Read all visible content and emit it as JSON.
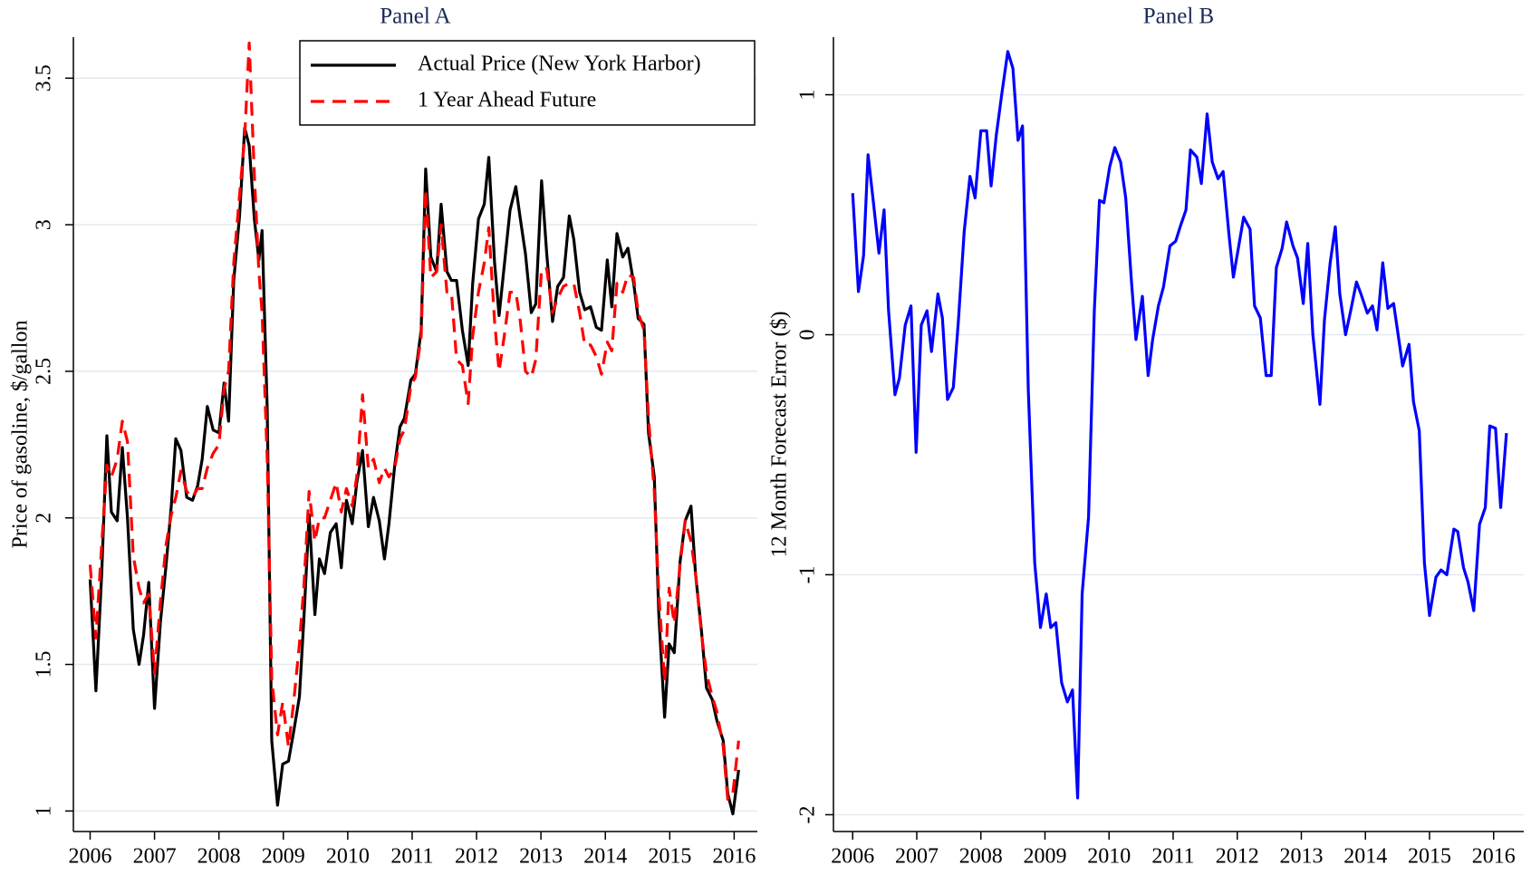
{
  "chart_data": [
    {
      "type": "line",
      "title": "Panel A",
      "ylabel": "Price of gasoline, $/gallon",
      "x": [
        2006.0,
        2006.09,
        2006.18,
        2006.26,
        2006.33,
        2006.42,
        2006.5,
        2006.58,
        2006.67,
        2006.76,
        2006.83,
        2006.91,
        2007.0,
        2007.09,
        2007.18,
        2007.26,
        2007.33,
        2007.41,
        2007.5,
        2007.59,
        2007.67,
        2007.74,
        2007.82,
        2007.91,
        2008.0,
        2008.08,
        2008.15,
        2008.23,
        2008.32,
        2008.4,
        2008.47,
        2008.55,
        2008.62,
        2008.67,
        2008.75,
        2008.82,
        2008.91,
        2008.99,
        2009.08,
        2009.16,
        2009.25,
        2009.32,
        2009.4,
        2009.49,
        2009.56,
        2009.64,
        2009.73,
        2009.82,
        2009.9,
        2009.98,
        2010.07,
        2010.14,
        2010.23,
        2010.32,
        2010.4,
        2010.49,
        2010.57,
        2010.64,
        2010.73,
        2010.81,
        2010.88,
        2010.98,
        2011.05,
        2011.14,
        2011.21,
        2011.29,
        2011.38,
        2011.45,
        2011.54,
        2011.61,
        2011.69,
        2011.78,
        2011.87,
        2011.94,
        2012.03,
        2012.12,
        2012.19,
        2012.28,
        2012.35,
        2012.43,
        2012.52,
        2012.61,
        2012.68,
        2012.76,
        2012.85,
        2012.92,
        2013.01,
        2013.09,
        2013.18,
        2013.26,
        2013.35,
        2013.44,
        2013.51,
        2013.6,
        2013.68,
        2013.77,
        2013.86,
        2013.94,
        2014.03,
        2014.1,
        2014.18,
        2014.27,
        2014.35,
        2014.44,
        2014.51,
        2014.6,
        2014.67,
        2014.76,
        2014.83,
        2014.92,
        2014.99,
        2015.07,
        2015.16,
        2015.24,
        2015.33,
        2015.4,
        2015.49,
        2015.57,
        2015.66,
        2015.73,
        2015.83,
        2015.9,
        2015.98,
        2016.07
      ],
      "series": [
        {
          "name": "Actual Price (New York Harbor)",
          "color": "#000000",
          "line_style": "solid",
          "values": [
            1.79,
            1.41,
            1.81,
            2.28,
            2.02,
            1.99,
            2.24,
            2.0,
            1.62,
            1.5,
            1.6,
            1.78,
            1.35,
            1.64,
            1.84,
            2.04,
            2.27,
            2.23,
            2.07,
            2.06,
            2.11,
            2.2,
            2.38,
            2.3,
            2.29,
            2.46,
            2.33,
            2.81,
            3.03,
            3.33,
            3.27,
            3.02,
            2.88,
            2.98,
            2.37,
            1.24,
            1.02,
            1.16,
            1.17,
            1.27,
            1.39,
            1.66,
            2.01,
            1.67,
            1.86,
            1.81,
            1.95,
            1.98,
            1.83,
            2.06,
            1.98,
            2.12,
            2.23,
            1.97,
            2.07,
            1.99,
            1.86,
            1.98,
            2.18,
            2.31,
            2.34,
            2.47,
            2.49,
            2.64,
            3.19,
            2.89,
            2.84,
            3.07,
            2.84,
            2.81,
            2.81,
            2.64,
            2.52,
            2.8,
            3.02,
            3.07,
            3.23,
            2.87,
            2.69,
            2.86,
            3.05,
            3.13,
            3.02,
            2.9,
            2.7,
            2.73,
            3.15,
            2.9,
            2.67,
            2.79,
            2.82,
            3.03,
            2.95,
            2.77,
            2.71,
            2.72,
            2.65,
            2.64,
            2.88,
            2.72,
            2.97,
            2.89,
            2.92,
            2.8,
            2.68,
            2.66,
            2.29,
            2.14,
            1.67,
            1.32,
            1.57,
            1.54,
            1.85,
            1.99,
            2.04,
            1.81,
            1.62,
            1.42,
            1.38,
            1.31,
            1.24,
            1.06,
            0.99,
            1.14
          ]
        },
        {
          "name": "1 Year Ahead Future",
          "color": "#ff0000",
          "line_style": "dashed",
          "values": [
            1.84,
            1.59,
            1.91,
            2.18,
            2.14,
            2.2,
            2.33,
            2.26,
            1.87,
            1.76,
            1.71,
            1.74,
            1.47,
            1.71,
            1.91,
            2.01,
            2.07,
            2.16,
            2.09,
            2.07,
            2.1,
            2.1,
            2.17,
            2.22,
            2.25,
            2.44,
            2.5,
            2.87,
            3.1,
            3.3,
            3.62,
            3.17,
            2.84,
            2.7,
            2.2,
            1.45,
            1.26,
            1.37,
            1.22,
            1.37,
            1.57,
            1.77,
            2.09,
            1.92,
            2.0,
            2.0,
            2.06,
            2.12,
            2.02,
            2.1,
            2.04,
            2.14,
            2.42,
            2.17,
            2.2,
            2.12,
            2.17,
            2.14,
            2.17,
            2.27,
            2.3,
            2.45,
            2.48,
            2.62,
            3.12,
            2.82,
            2.84,
            3.0,
            2.77,
            2.77,
            2.54,
            2.52,
            2.39,
            2.62,
            2.77,
            2.87,
            2.99,
            2.67,
            2.5,
            2.62,
            2.77,
            2.77,
            2.67,
            2.5,
            2.48,
            2.54,
            2.85,
            2.85,
            2.7,
            2.75,
            2.79,
            2.8,
            2.8,
            2.7,
            2.59,
            2.59,
            2.55,
            2.49,
            2.6,
            2.57,
            2.8,
            2.77,
            2.83,
            2.82,
            2.7,
            2.64,
            2.34,
            2.09,
            1.74,
            1.44,
            1.76,
            1.64,
            1.84,
            1.99,
            1.92,
            1.81,
            1.61,
            1.47,
            1.39,
            1.34,
            1.22,
            1.04,
            1.06,
            1.24
          ]
        }
      ],
      "xlim": [
        2005.74,
        2016.36
      ],
      "xticks": [
        2006,
        2007,
        2008,
        2009,
        2010,
        2011,
        2012,
        2013,
        2014,
        2015,
        2016
      ],
      "ylim": [
        0.93,
        3.64
      ],
      "yticks": [
        1,
        1.5,
        2,
        2.5,
        3,
        3.5
      ],
      "grid": true,
      "legend": "top-right"
    },
    {
      "type": "line",
      "title": "Panel B",
      "ylabel": "12 Month Forecast Error ($)",
      "color": "#0000ff",
      "x": [
        2006.0,
        2006.09,
        2006.17,
        2006.24,
        2006.32,
        2006.41,
        2006.49,
        2006.56,
        2006.66,
        2006.73,
        2006.82,
        2006.91,
        2006.99,
        2007.07,
        2007.16,
        2007.23,
        2007.33,
        2007.4,
        2007.48,
        2007.57,
        2007.65,
        2007.74,
        2007.83,
        2007.91,
        2008.0,
        2008.09,
        2008.16,
        2008.24,
        2008.33,
        2008.42,
        2008.5,
        2008.58,
        2008.65,
        2008.74,
        2008.84,
        2008.93,
        2009.02,
        2009.09,
        2009.17,
        2009.26,
        2009.35,
        2009.43,
        2009.51,
        2009.58,
        2009.68,
        2009.77,
        2009.85,
        2009.92,
        2010.01,
        2010.09,
        2010.18,
        2010.26,
        2010.35,
        2010.42,
        2010.52,
        2010.61,
        2010.68,
        2010.77,
        2010.85,
        2010.95,
        2011.04,
        2011.11,
        2011.2,
        2011.27,
        2011.37,
        2011.44,
        2011.53,
        2011.61,
        2011.7,
        2011.78,
        2011.87,
        2011.94,
        2012.03,
        2012.1,
        2012.2,
        2012.27,
        2012.36,
        2012.45,
        2012.53,
        2012.61,
        2012.7,
        2012.77,
        2012.87,
        2012.94,
        2013.03,
        2013.1,
        2013.18,
        2013.29,
        2013.36,
        2013.45,
        2013.53,
        2013.6,
        2013.69,
        2013.77,
        2013.86,
        2013.93,
        2014.03,
        2014.11,
        2014.18,
        2014.27,
        2014.35,
        2014.44,
        2014.51,
        2014.58,
        2014.68,
        2014.75,
        2014.84,
        2014.92,
        2015.0,
        2015.1,
        2015.18,
        2015.27,
        2015.38,
        2015.44,
        2015.53,
        2015.6,
        2015.69,
        2015.78,
        2015.87,
        2015.94,
        2016.03,
        2016.11,
        2016.2
      ],
      "values": [
        0.59,
        0.18,
        0.33,
        0.75,
        0.56,
        0.34,
        0.52,
        0.1,
        -0.25,
        -0.18,
        0.04,
        0.12,
        -0.49,
        0.04,
        0.1,
        -0.07,
        0.17,
        0.07,
        -0.27,
        -0.22,
        0.06,
        0.43,
        0.66,
        0.57,
        0.85,
        0.85,
        0.62,
        0.83,
        1.01,
        1.18,
        1.11,
        0.81,
        0.87,
        -0.23,
        -0.95,
        -1.22,
        -1.08,
        -1.22,
        -1.2,
        -1.45,
        -1.53,
        -1.48,
        -1.93,
        -1.08,
        -0.76,
        0.1,
        0.56,
        0.55,
        0.7,
        0.78,
        0.72,
        0.57,
        0.22,
        -0.02,
        0.16,
        -0.17,
        -0.02,
        0.12,
        0.2,
        0.37,
        0.39,
        0.45,
        0.52,
        0.77,
        0.74,
        0.63,
        0.92,
        0.72,
        0.65,
        0.68,
        0.42,
        0.24,
        0.38,
        0.49,
        0.44,
        0.12,
        0.07,
        -0.17,
        -0.17,
        0.28,
        0.36,
        0.47,
        0.37,
        0.32,
        0.13,
        0.38,
        0.0,
        -0.29,
        0.06,
        0.3,
        0.45,
        0.17,
        0.0,
        0.1,
        0.22,
        0.17,
        0.09,
        0.12,
        0.02,
        0.3,
        0.11,
        0.13,
        0.0,
        -0.13,
        -0.04,
        -0.28,
        -0.4,
        -0.95,
        -1.17,
        -1.01,
        -0.98,
        -1.0,
        -0.81,
        -0.82,
        -0.97,
        -1.03,
        -1.15,
        -0.79,
        -0.72,
        -0.38,
        -0.39,
        -0.72,
        -0.41
      ],
      "xlim": [
        2005.7,
        2016.47
      ],
      "xticks": [
        2006,
        2007,
        2008,
        2009,
        2010,
        2011,
        2012,
        2013,
        2014,
        2015,
        2016
      ],
      "ylim": [
        -2.07,
        1.24
      ],
      "yticks": [
        1,
        0,
        -1,
        -2
      ],
      "grid": true
    }
  ]
}
